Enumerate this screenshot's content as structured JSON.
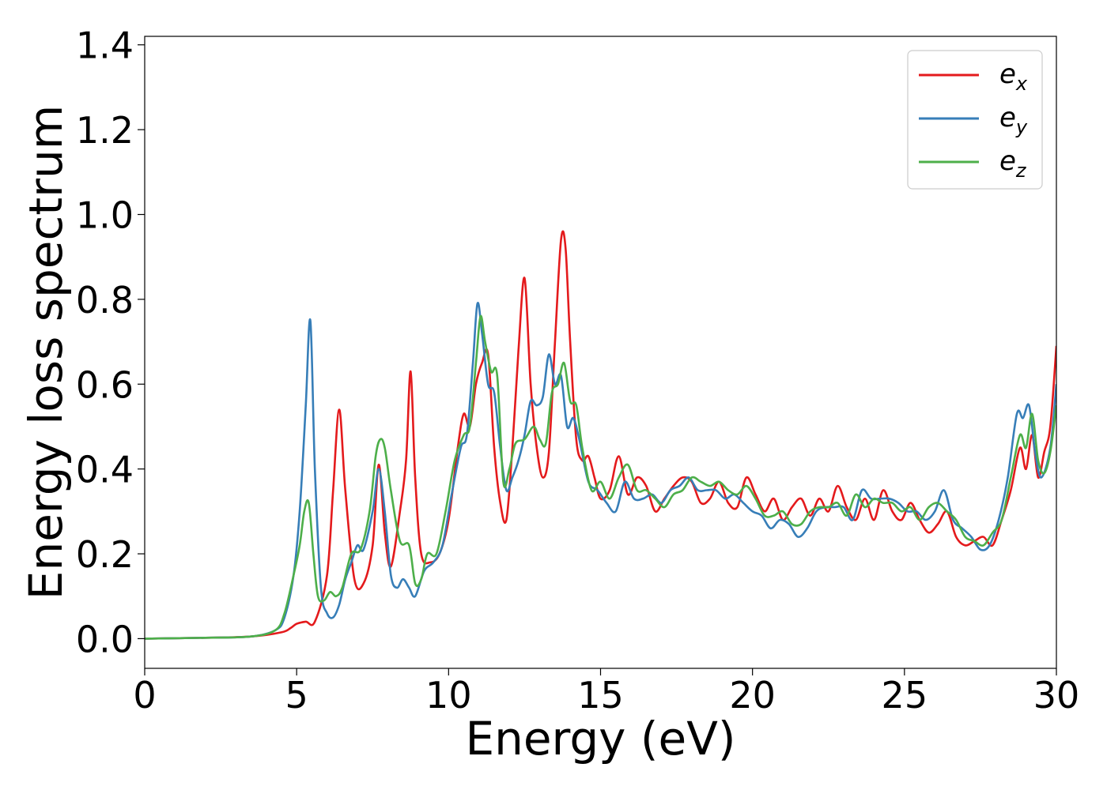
{
  "chart_data": {
    "type": "line",
    "title": "",
    "xlabel": "Energy (eV)",
    "ylabel": "Energy loss spectrum",
    "xlim": [
      0,
      30
    ],
    "ylim": [
      -0.07,
      1.42
    ],
    "xticks": [
      "0",
      "5",
      "10",
      "15",
      "20",
      "25",
      "30"
    ],
    "yticks": [
      "0.0",
      "0.2",
      "0.4",
      "0.6",
      "0.8",
      "1.0",
      "1.2",
      "1.4"
    ],
    "grid": false,
    "legend_position": "top-right",
    "series": [
      {
        "name": "e_x",
        "label_main": "e",
        "label_sub": "x",
        "color": "#e41a1c",
        "x": [
          0,
          2,
          3.5,
          4.5,
          4.8,
          5.0,
          5.3,
          5.6,
          6.0,
          6.2,
          6.4,
          6.6,
          6.9,
          7.2,
          7.5,
          7.7,
          7.9,
          8.1,
          8.4,
          8.6,
          8.75,
          8.9,
          9.1,
          9.4,
          9.7,
          10.0,
          10.3,
          10.5,
          10.7,
          10.9,
          11.1,
          11.3,
          11.5,
          11.7,
          11.9,
          12.1,
          12.3,
          12.5,
          12.7,
          12.9,
          13.1,
          13.3,
          13.5,
          13.7,
          13.85,
          14.0,
          14.2,
          14.4,
          14.6,
          14.8,
          15.0,
          15.3,
          15.6,
          15.9,
          16.2,
          16.5,
          16.8,
          17.1,
          17.4,
          17.7,
          18.0,
          18.3,
          18.6,
          18.9,
          19.2,
          19.5,
          19.8,
          20.1,
          20.4,
          20.7,
          21.0,
          21.3,
          21.6,
          21.9,
          22.2,
          22.5,
          22.8,
          23.1,
          23.4,
          23.7,
          24.0,
          24.3,
          24.6,
          24.9,
          25.2,
          25.5,
          25.8,
          26.1,
          26.4,
          26.7,
          27.0,
          27.3,
          27.6,
          27.9,
          28.2,
          28.5,
          28.8,
          29.0,
          29.2,
          29.4,
          29.6,
          29.8,
          30.0
        ],
        "y": [
          0.0,
          0.002,
          0.005,
          0.015,
          0.025,
          0.035,
          0.04,
          0.04,
          0.15,
          0.35,
          0.54,
          0.35,
          0.14,
          0.13,
          0.22,
          0.41,
          0.25,
          0.17,
          0.3,
          0.42,
          0.63,
          0.38,
          0.2,
          0.18,
          0.2,
          0.28,
          0.45,
          0.53,
          0.5,
          0.6,
          0.65,
          0.67,
          0.45,
          0.32,
          0.28,
          0.45,
          0.68,
          0.85,
          0.6,
          0.45,
          0.38,
          0.44,
          0.7,
          0.94,
          0.92,
          0.7,
          0.47,
          0.42,
          0.43,
          0.38,
          0.33,
          0.35,
          0.43,
          0.34,
          0.38,
          0.36,
          0.3,
          0.33,
          0.36,
          0.38,
          0.37,
          0.32,
          0.33,
          0.37,
          0.32,
          0.31,
          0.38,
          0.34,
          0.3,
          0.33,
          0.28,
          0.31,
          0.33,
          0.29,
          0.33,
          0.3,
          0.36,
          0.31,
          0.28,
          0.33,
          0.28,
          0.35,
          0.3,
          0.28,
          0.32,
          0.28,
          0.25,
          0.27,
          0.3,
          0.24,
          0.22,
          0.23,
          0.24,
          0.22,
          0.28,
          0.35,
          0.45,
          0.4,
          0.48,
          0.38,
          0.44,
          0.5,
          0.69
        ]
      },
      {
        "name": "e_y",
        "label_main": "e",
        "label_sub": "y",
        "color": "#377eb8",
        "x": [
          0,
          2,
          3.5,
          4.3,
          4.6,
          4.9,
          5.1,
          5.3,
          5.45,
          5.6,
          5.8,
          6.0,
          6.2,
          6.4,
          6.6,
          6.8,
          7.0,
          7.2,
          7.5,
          7.7,
          7.9,
          8.1,
          8.3,
          8.5,
          8.7,
          8.9,
          9.2,
          9.5,
          9.8,
          10.1,
          10.4,
          10.6,
          10.8,
          10.95,
          11.1,
          11.3,
          11.5,
          11.7,
          11.9,
          12.1,
          12.3,
          12.5,
          12.7,
          12.9,
          13.1,
          13.3,
          13.5,
          13.7,
          13.9,
          14.1,
          14.3,
          14.6,
          14.9,
          15.2,
          15.5,
          15.8,
          16.1,
          16.4,
          16.7,
          17.0,
          17.3,
          17.6,
          17.9,
          18.2,
          18.5,
          18.8,
          19.1,
          19.4,
          19.7,
          20.0,
          20.3,
          20.6,
          20.9,
          21.2,
          21.5,
          21.8,
          22.1,
          22.4,
          22.7,
          23.0,
          23.3,
          23.6,
          23.9,
          24.2,
          24.5,
          24.8,
          25.1,
          25.4,
          25.7,
          26.0,
          26.3,
          26.6,
          26.9,
          27.2,
          27.5,
          27.8,
          28.1,
          28.4,
          28.7,
          28.9,
          29.1,
          29.3,
          29.5,
          29.8,
          30.0
        ],
        "y": [
          0.0,
          0.002,
          0.005,
          0.02,
          0.05,
          0.15,
          0.3,
          0.55,
          0.75,
          0.4,
          0.12,
          0.06,
          0.05,
          0.08,
          0.14,
          0.18,
          0.22,
          0.21,
          0.3,
          0.4,
          0.3,
          0.15,
          0.12,
          0.14,
          0.12,
          0.1,
          0.16,
          0.18,
          0.22,
          0.34,
          0.45,
          0.48,
          0.65,
          0.79,
          0.72,
          0.6,
          0.58,
          0.45,
          0.35,
          0.38,
          0.42,
          0.48,
          0.56,
          0.55,
          0.57,
          0.67,
          0.6,
          0.62,
          0.5,
          0.52,
          0.47,
          0.37,
          0.35,
          0.32,
          0.3,
          0.37,
          0.33,
          0.33,
          0.34,
          0.32,
          0.35,
          0.36,
          0.38,
          0.35,
          0.35,
          0.35,
          0.33,
          0.34,
          0.32,
          0.3,
          0.29,
          0.26,
          0.28,
          0.27,
          0.24,
          0.26,
          0.3,
          0.31,
          0.31,
          0.31,
          0.28,
          0.35,
          0.33,
          0.33,
          0.33,
          0.32,
          0.3,
          0.3,
          0.28,
          0.3,
          0.35,
          0.28,
          0.26,
          0.24,
          0.21,
          0.22,
          0.28,
          0.38,
          0.53,
          0.52,
          0.55,
          0.44,
          0.38,
          0.45,
          0.6
        ]
      },
      {
        "name": "e_z",
        "label_main": "e",
        "label_sub": "z",
        "color": "#4daf4a",
        "x": [
          0,
          2,
          3.5,
          4.3,
          4.6,
          4.9,
          5.1,
          5.25,
          5.4,
          5.55,
          5.7,
          5.9,
          6.1,
          6.3,
          6.5,
          6.8,
          7.1,
          7.4,
          7.6,
          7.75,
          7.9,
          8.1,
          8.4,
          8.7,
          8.9,
          9.1,
          9.3,
          9.6,
          9.9,
          10.2,
          10.5,
          10.7,
          10.9,
          11.05,
          11.2,
          11.4,
          11.6,
          11.8,
          12.0,
          12.2,
          12.5,
          12.8,
          13.0,
          13.2,
          13.4,
          13.6,
          13.8,
          14.0,
          14.2,
          14.4,
          14.7,
          15.0,
          15.3,
          15.6,
          15.9,
          16.2,
          16.5,
          16.8,
          17.1,
          17.4,
          17.7,
          18.0,
          18.3,
          18.6,
          18.9,
          19.2,
          19.5,
          19.8,
          20.1,
          20.4,
          20.7,
          21.0,
          21.3,
          21.6,
          21.9,
          22.2,
          22.5,
          22.8,
          23.1,
          23.4,
          23.7,
          24.0,
          24.3,
          24.6,
          24.9,
          25.2,
          25.5,
          25.8,
          26.1,
          26.4,
          26.7,
          27.0,
          27.3,
          27.6,
          27.9,
          28.2,
          28.5,
          28.8,
          29.0,
          29.2,
          29.4,
          29.6,
          29.8,
          30.0
        ],
        "y": [
          0.0,
          0.002,
          0.005,
          0.02,
          0.06,
          0.15,
          0.22,
          0.3,
          0.32,
          0.2,
          0.1,
          0.09,
          0.11,
          0.1,
          0.12,
          0.2,
          0.21,
          0.3,
          0.43,
          0.47,
          0.45,
          0.35,
          0.23,
          0.22,
          0.13,
          0.14,
          0.2,
          0.2,
          0.3,
          0.42,
          0.48,
          0.5,
          0.65,
          0.76,
          0.7,
          0.63,
          0.62,
          0.37,
          0.4,
          0.46,
          0.47,
          0.5,
          0.47,
          0.46,
          0.58,
          0.6,
          0.65,
          0.56,
          0.55,
          0.45,
          0.35,
          0.37,
          0.33,
          0.38,
          0.41,
          0.35,
          0.35,
          0.33,
          0.31,
          0.34,
          0.35,
          0.38,
          0.37,
          0.36,
          0.37,
          0.35,
          0.34,
          0.36,
          0.33,
          0.29,
          0.29,
          0.3,
          0.27,
          0.27,
          0.3,
          0.31,
          0.31,
          0.32,
          0.29,
          0.34,
          0.31,
          0.33,
          0.32,
          0.32,
          0.3,
          0.31,
          0.28,
          0.31,
          0.32,
          0.3,
          0.28,
          0.24,
          0.23,
          0.22,
          0.25,
          0.28,
          0.38,
          0.48,
          0.45,
          0.53,
          0.42,
          0.39,
          0.44,
          0.55
        ]
      }
    ]
  }
}
